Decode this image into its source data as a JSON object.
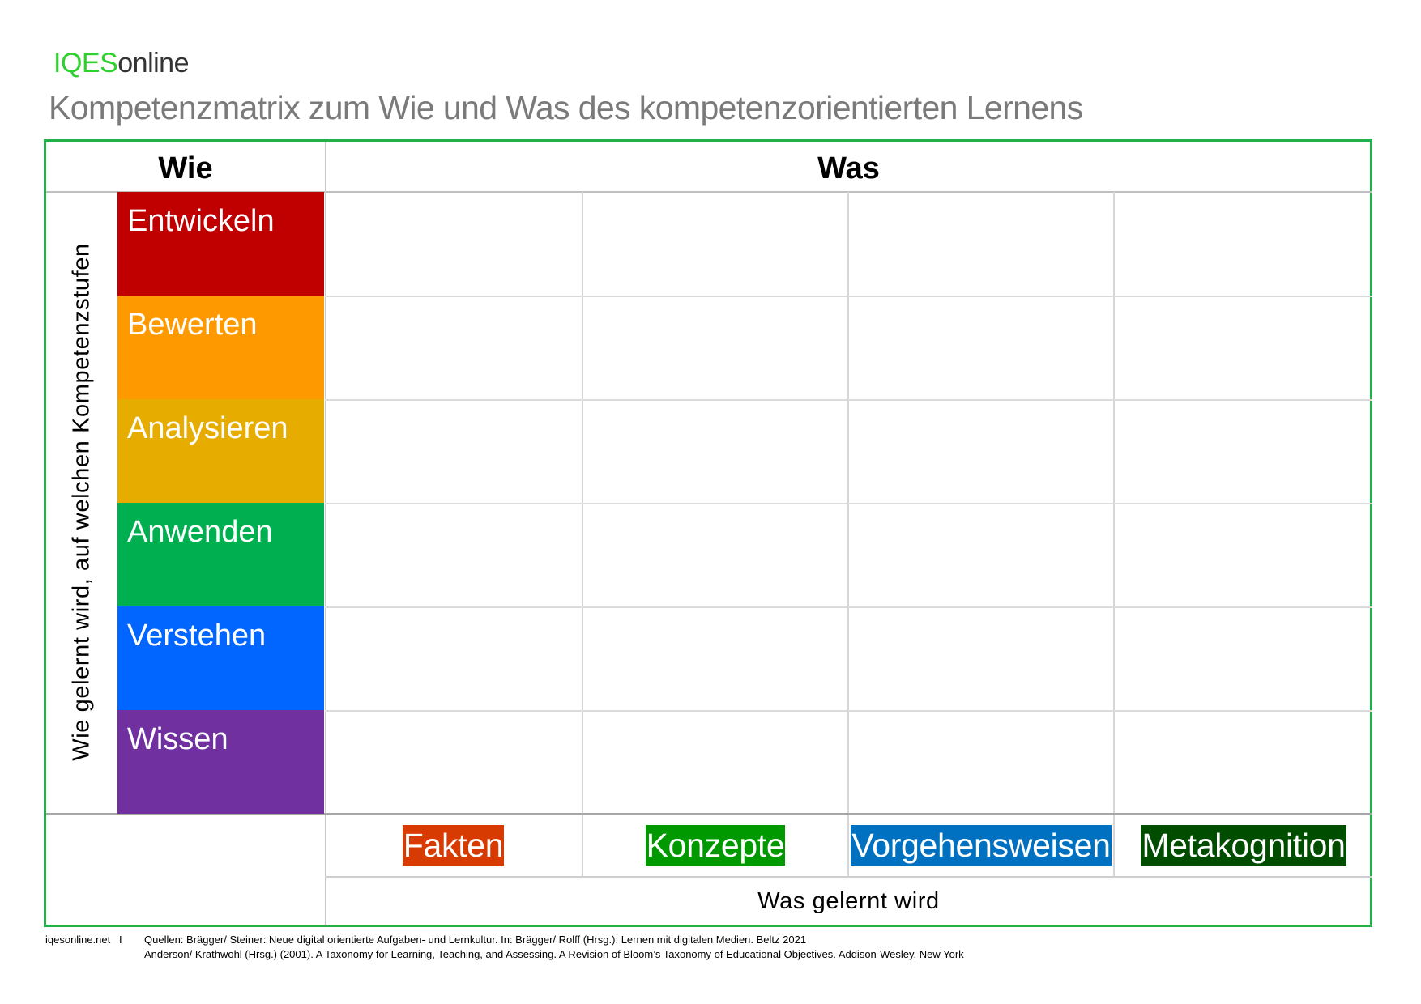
{
  "brand": {
    "part1": "IQES",
    "part2": "online"
  },
  "title": "Kompetenzmatrix zum Wie und Was des kompetenzorientierten Lernens",
  "matrix": {
    "header_wie": "Wie",
    "header_was": "Was",
    "side_label": "Wie gelernt wird, auf welchen Kompetenzstufen",
    "levels": [
      {
        "label": "Entwickeln",
        "color": "#c00000"
      },
      {
        "label": "Bewerten",
        "color": "#ff9900"
      },
      {
        "label": "Analysieren",
        "color": "#e6ad00"
      },
      {
        "label": "Anwenden",
        "color": "#00b050"
      },
      {
        "label": "Verstehen",
        "color": "#0066ff"
      },
      {
        "label": "Wissen",
        "color": "#7030a0"
      }
    ],
    "categories": [
      {
        "label": "Fakten",
        "color": "#d83b01"
      },
      {
        "label": "Konzepte",
        "color": "#009a00"
      },
      {
        "label": "Vorgehensweisen",
        "color": "#0070c0"
      },
      {
        "label": "Metakognition",
        "color": "#004d00"
      }
    ],
    "bottom_caption": "Was gelernt wird",
    "frame_color": "#22b04a"
  },
  "footer": {
    "site": "iqesonline.net",
    "separator": "I",
    "source_line1": "Quellen: Brägger/ Steiner: Neue digital orientierte Aufgaben- und Lernkultur. In: Brägger/ Rolff (Hrsg.): Lernen mit digitalen Medien. Beltz 2021",
    "source_line2": "Anderson/ Krathwohl (Hrsg.) (2001). A Taxonomy for Learning, Teaching, and Assessing. A Revision of Bloom’s Taxonomy of Educational Objectives. Addison-Wesley, New York"
  }
}
